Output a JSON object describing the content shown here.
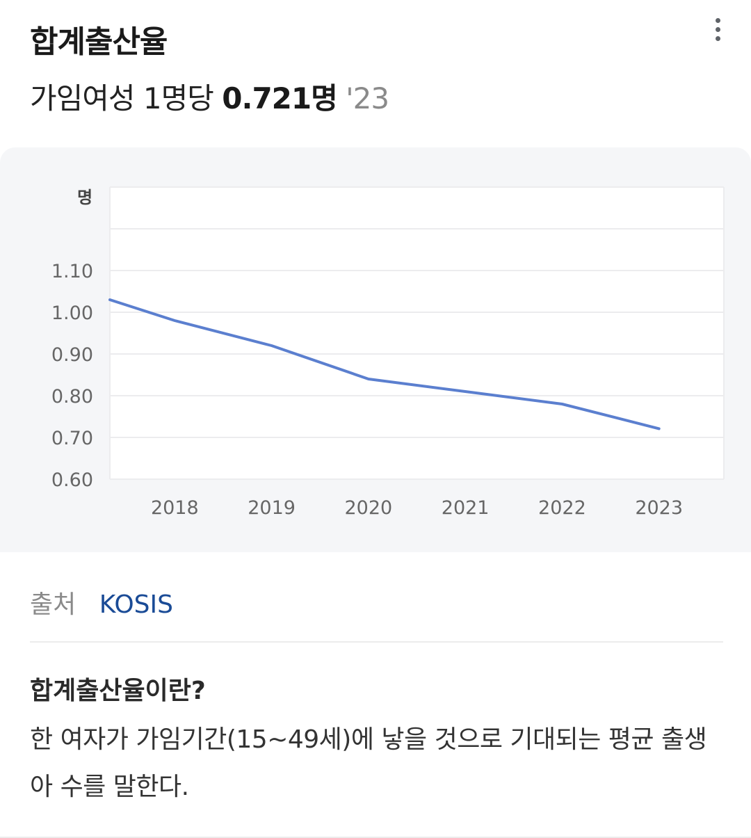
{
  "card": {
    "title": "합계출산율",
    "menu_icon": "more-vert-icon"
  },
  "summary": {
    "prefix": "가임여성 1명당",
    "value": "0.721명",
    "year": "'23"
  },
  "chart_data": {
    "type": "line",
    "ylabel": "명",
    "x": [
      "2018",
      "2019",
      "2020",
      "2021",
      "2022",
      "2023"
    ],
    "y_ticks": [
      "0.60",
      "0.70",
      "0.80",
      "0.90",
      "1.00",
      "1.10"
    ],
    "ylim": [
      0.6,
      1.3
    ],
    "x_range": [
      2017.33,
      2023.67
    ],
    "grid": true,
    "legend": "none",
    "series": [
      {
        "x": [
          2017.33,
          2018,
          2019,
          2020,
          2021,
          2022,
          2023
        ],
        "values": [
          1.03,
          0.98,
          0.92,
          0.84,
          0.81,
          0.78,
          0.721
        ],
        "color": "#5b7fcf"
      }
    ]
  },
  "source": {
    "label": "출처",
    "link": "KOSIS"
  },
  "definition": {
    "title": "합계출산율이란?",
    "body": "한 여자가 가임기간(15~49세)에 낳을 것으로 기대되는 평균 출생아 수를 말한다."
  }
}
